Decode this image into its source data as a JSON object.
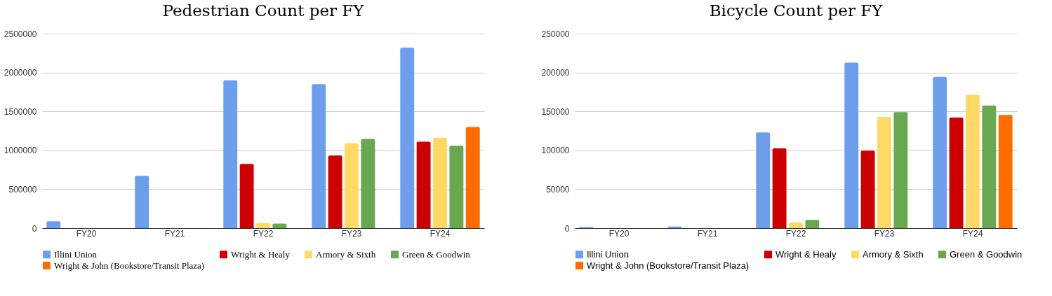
{
  "chart_data": [
    {
      "type": "bar",
      "title": "Pedestrian Count per FY",
      "categories": [
        "FY20",
        "FY21",
        "FY22",
        "FY23",
        "FY24"
      ],
      "ylim": [
        0,
        2500000
      ],
      "yticks": [
        0,
        500000,
        1000000,
        1500000,
        2000000,
        2500000
      ],
      "grid": "y",
      "legend": "bottom",
      "series": [
        {
          "name": "Illini Union",
          "color": "#6d9eeb",
          "values": [
            87000,
            672000,
            1900000,
            1850000,
            2320000
          ]
        },
        {
          "name": "Wright & Healy",
          "color": "#cc0000",
          "values": [
            null,
            null,
            825000,
            932000,
            1110000
          ]
        },
        {
          "name": "Armory & Sixth",
          "color": "#ffd966",
          "values": [
            null,
            null,
            66000,
            1090000,
            1163000
          ]
        },
        {
          "name": "Green & Goodwin",
          "color": "#6aa84f",
          "values": [
            null,
            null,
            58000,
            1147000,
            1060000
          ]
        },
        {
          "name": "Wright & John (Bookstore/Transit Plaza)",
          "color": "#ff6d01",
          "values": [
            null,
            null,
            null,
            null,
            1300000
          ]
        }
      ]
    },
    {
      "type": "bar",
      "title": "Bicycle Count per FY",
      "categories": [
        "FY20",
        "FY21",
        "FY22",
        "FY23",
        "FY24"
      ],
      "ylim": [
        0,
        250000
      ],
      "yticks": [
        0,
        50000,
        100000,
        150000,
        200000,
        250000
      ],
      "grid": "y",
      "legend": "bottom",
      "series": [
        {
          "name": "Illini Union",
          "color": "#6d9eeb",
          "values": [
            1300,
            2000,
            123000,
            212600,
            194500
          ]
        },
        {
          "name": "Wright & Healy",
          "color": "#cc0000",
          "values": [
            null,
            null,
            102500,
            99600,
            142000
          ]
        },
        {
          "name": "Armory & Sixth",
          "color": "#ffd966",
          "values": [
            null,
            null,
            7500,
            143000,
            171400
          ]
        },
        {
          "name": "Green & Goodwin",
          "color": "#6aa84f",
          "values": [
            null,
            null,
            10500,
            149000,
            157600
          ]
        },
        {
          "name": "Wright & John (Bookstore/Transit Plaza)",
          "color": "#ff6d01",
          "values": [
            null,
            null,
            null,
            null,
            145400
          ]
        }
      ]
    }
  ]
}
